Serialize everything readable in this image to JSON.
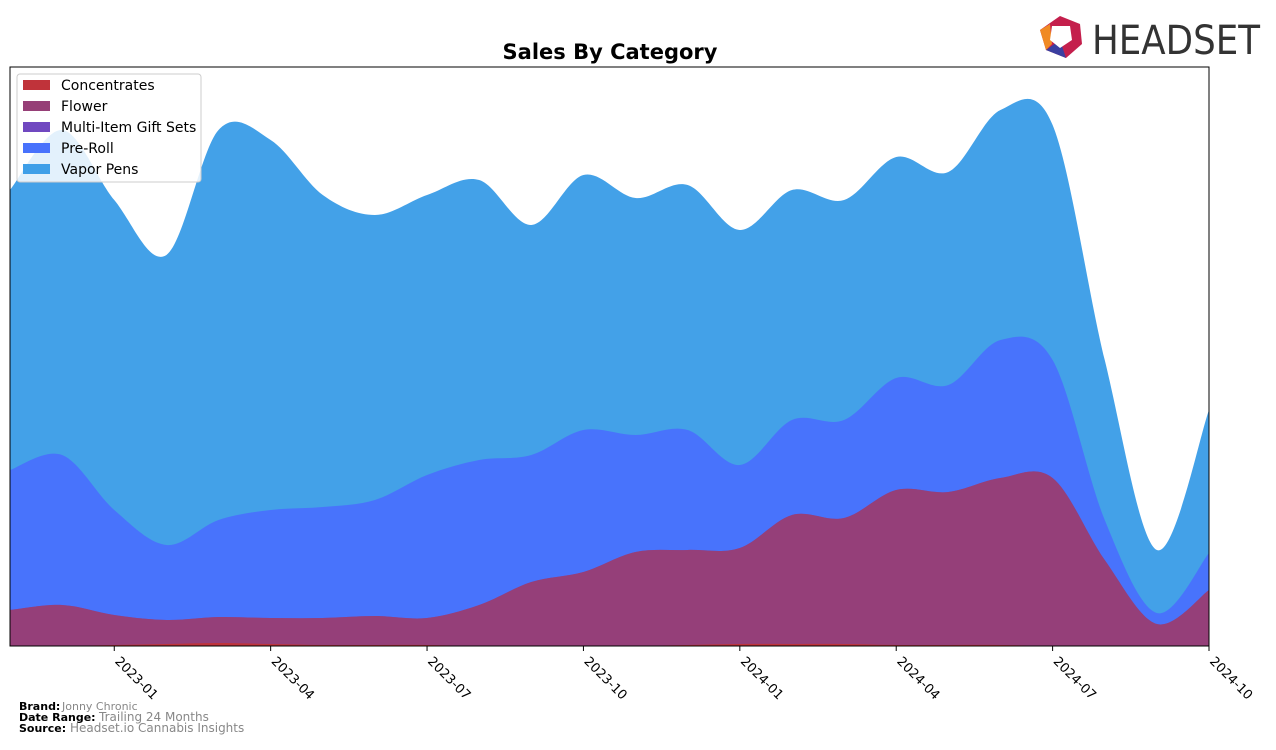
{
  "brand_logo": "HEADSET",
  "chart_data": {
    "type": "area",
    "stacked": true,
    "title": "Sales By Category",
    "x": [
      "2022-11",
      "2022-12",
      "2023-01",
      "2023-02",
      "2023-03",
      "2023-04",
      "2023-05",
      "2023-06",
      "2023-07",
      "2023-08",
      "2023-09",
      "2023-10",
      "2023-11",
      "2023-12",
      "2024-01",
      "2024-02",
      "2024-03",
      "2024-04",
      "2024-05",
      "2024-06",
      "2024-07",
      "2024-08",
      "2024-09",
      "2024-10"
    ],
    "xlim": [
      "2022-11",
      "2024-10"
    ],
    "xticks": [
      "2023-01",
      "2023-04",
      "2023-07",
      "2023-10",
      "2024-01",
      "2024-04",
      "2024-07",
      "2024-10"
    ],
    "ylim": [
      0,
      579
    ],
    "legend": "upper left",
    "series": [
      {
        "name": "Concentrates",
        "color": "#c0333a",
        "values": [
          0,
          0,
          1,
          2,
          3,
          2,
          1,
          1,
          1,
          0,
          0,
          0,
          0,
          1,
          2,
          2,
          2,
          1,
          1,
          1,
          0,
          0,
          0,
          0
        ]
      },
      {
        "name": "Flower",
        "color": "#963f77",
        "values": [
          36,
          41,
          30,
          24,
          26,
          26,
          27,
          29,
          27,
          41,
          64,
          74,
          94,
          95,
          96,
          129,
          126,
          155,
          153,
          167,
          168,
          86,
          22,
          56
        ]
      },
      {
        "name": "Multi-Item Gift Sets",
        "color": "#7048c0",
        "values": [
          0,
          0,
          0,
          0,
          0,
          0,
          0,
          0,
          0,
          0,
          0,
          0,
          0,
          0,
          0,
          0,
          0,
          0,
          0,
          0,
          0,
          0,
          0,
          0
        ]
      },
      {
        "name": "Pre-Roll",
        "color": "#4872fc",
        "values": [
          140,
          150,
          105,
          75,
          97,
          108,
          111,
          116,
          143,
          145,
          127,
          142,
          117,
          120,
          83,
          95,
          98,
          112,
          107,
          138,
          118,
          40,
          11,
          37
        ]
      },
      {
        "name": "Vapor Pens",
        "color": "#3f9fe8",
        "values": [
          280,
          325,
          310,
          290,
          390,
          370,
          312,
          285,
          280,
          280,
          230,
          255,
          237,
          245,
          235,
          230,
          220,
          221,
          213,
          230,
          235,
          160,
          63,
          143
        ]
      }
    ]
  },
  "footer": {
    "brand_label": "Brand:",
    "brand": "Jonny Chronic",
    "range_label": "Date Range:",
    "range": "Trailing 24 Months",
    "source_label": "Source:",
    "source": "Headset.io Cannabis Insights"
  }
}
